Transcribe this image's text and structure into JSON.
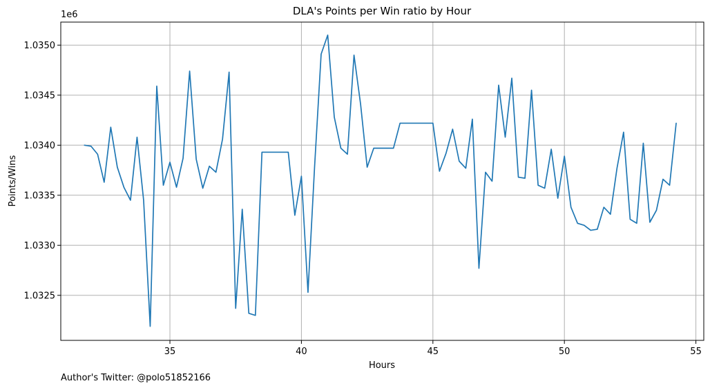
{
  "chart_data": {
    "type": "line",
    "title": "DLA's Points per Win ratio by Hour",
    "xlabel": "Hours",
    "ylabel": "Points/Wins",
    "y_offset_label": "1e6",
    "xlim": [
      30.85,
      55.3
    ],
    "ylim": [
      1.03205,
      1.03523
    ],
    "xticks": [
      35,
      40,
      45,
      50,
      55
    ],
    "xtick_labels": [
      "35",
      "40",
      "45",
      "50",
      "55"
    ],
    "yticks": [
      1.0325,
      1.033,
      1.0335,
      1.034,
      1.0345,
      1.035
    ],
    "ytick_labels": [
      "1.0325",
      "1.0330",
      "1.0335",
      "1.0340",
      "1.0345",
      "1.0350"
    ],
    "grid": true,
    "legend": "none",
    "series": [
      {
        "color": "#1f77b4",
        "x": [
          31.75,
          32.0,
          32.25,
          32.5,
          32.75,
          33.0,
          33.25,
          33.5,
          33.75,
          34.0,
          34.25,
          34.5,
          34.75,
          35.0,
          35.25,
          35.5,
          35.75,
          36.0,
          36.25,
          36.5,
          36.75,
          37.0,
          37.25,
          37.5,
          37.75,
          38.0,
          38.25,
          38.5,
          38.75,
          39.0,
          39.25,
          39.5,
          39.75,
          40.0,
          40.25,
          40.5,
          40.75,
          41.0,
          41.25,
          41.5,
          41.75,
          42.0,
          42.25,
          42.5,
          42.75,
          43.0,
          43.25,
          43.5,
          43.75,
          44.0,
          44.25,
          44.5,
          44.75,
          45.0,
          45.25,
          45.5,
          45.75,
          46.0,
          46.25,
          46.5,
          46.75,
          47.0,
          47.25,
          47.5,
          47.75,
          48.0,
          48.25,
          48.5,
          48.75,
          49.0,
          49.25,
          49.5,
          49.75,
          50.0,
          50.25,
          50.5,
          50.75,
          51.0,
          51.25,
          51.5,
          51.75,
          52.0,
          52.25,
          52.5,
          52.75,
          53.0,
          53.25,
          53.5,
          53.75,
          54.0,
          54.25
        ],
        "y": [
          1.034,
          1.03399,
          1.03391,
          1.03363,
          1.03418,
          1.03378,
          1.03358,
          1.03345,
          1.03408,
          1.03345,
          1.03219,
          1.03459,
          1.0336,
          1.03383,
          1.03358,
          1.03387,
          1.03474,
          1.03386,
          1.03357,
          1.03379,
          1.03373,
          1.03406,
          1.03473,
          1.03237,
          1.03336,
          1.03232,
          1.0323,
          1.03393,
          1.03393,
          1.03393,
          1.03393,
          1.03393,
          1.0333,
          1.03369,
          1.03253,
          1.03378,
          1.03491,
          1.0351,
          1.03428,
          1.03397,
          1.03391,
          1.0349,
          1.03441,
          1.03378,
          1.03397,
          1.03397,
          1.03397,
          1.03397,
          1.03422,
          1.03422,
          1.03422,
          1.03422,
          1.03422,
          1.03422,
          1.03374,
          1.03392,
          1.03416,
          1.03384,
          1.03377,
          1.03426,
          1.03277,
          1.03373,
          1.03364,
          1.0346,
          1.03408,
          1.03467,
          1.03368,
          1.03367,
          1.03455,
          1.0336,
          1.03357,
          1.03396,
          1.03347,
          1.03389,
          1.03338,
          1.03322,
          1.0332,
          1.03315,
          1.03316,
          1.03338,
          1.03331,
          1.03377,
          1.03413,
          1.03326,
          1.03322,
          1.03402,
          1.03323,
          1.03335,
          1.03366,
          1.0336,
          1.03422
        ]
      }
    ]
  },
  "footer": {
    "text": "Author's Twitter: @polo51852166"
  }
}
